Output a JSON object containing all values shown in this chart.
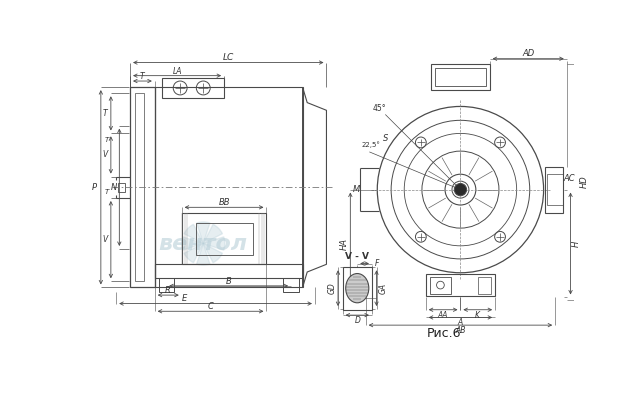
{
  "bg_color": "#ffffff",
  "line_color": "#4a4a4a",
  "dim_color": "#4a4a4a",
  "fig_caption": "Рис.6",
  "vv_label": "V - V",
  "wm_color": "#b8cfd8",
  "wm_text": "вентол"
}
